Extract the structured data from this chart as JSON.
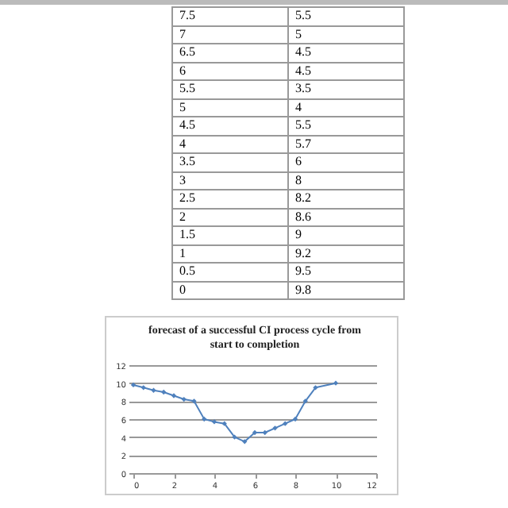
{
  "chart_data": {
    "type": "line",
    "title": "forecast of a successful CI process cycle from start to completion",
    "x": [
      0,
      0.5,
      1,
      1.5,
      2,
      2.5,
      3,
      3.5,
      4,
      4.5,
      5,
      5.5,
      6,
      6.5,
      7,
      7.5,
      8,
      8.5,
      9,
      10
    ],
    "series": [
      {
        "color": "#4f81bd",
        "values": [
          9.8,
          9.5,
          9.2,
          9,
          8.6,
          8.2,
          8,
          6,
          5.7,
          5.5,
          4,
          3.5,
          4.5,
          4.5,
          5,
          5.5,
          6,
          8,
          9.5,
          10
        ]
      }
    ],
    "annotations": [
      "7.5",
      "5.5",
      "7",
      "5",
      "6.5",
      "4.5",
      "6",
      "4.5",
      "5.5",
      "3.5",
      "5",
      "4",
      "4.5",
      "5.5",
      "4",
      "5.7",
      "3.5",
      "6",
      "3",
      "8",
      "2.5",
      "8.2",
      "2",
      "8.6",
      "1.5",
      "9",
      "1",
      "9.2",
      "0.5",
      "9.5",
      "0",
      "9.8"
    ],
    "xlim": [
      0,
      12
    ],
    "xticks": [
      0,
      2,
      4,
      6,
      8,
      10,
      12
    ],
    "ylim": [
      0,
      12
    ],
    "yticks": [
      0,
      2,
      4,
      6,
      8,
      10,
      12
    ],
    "grid": "y",
    "marker": "diamond",
    "line_style": "solid"
  }
}
